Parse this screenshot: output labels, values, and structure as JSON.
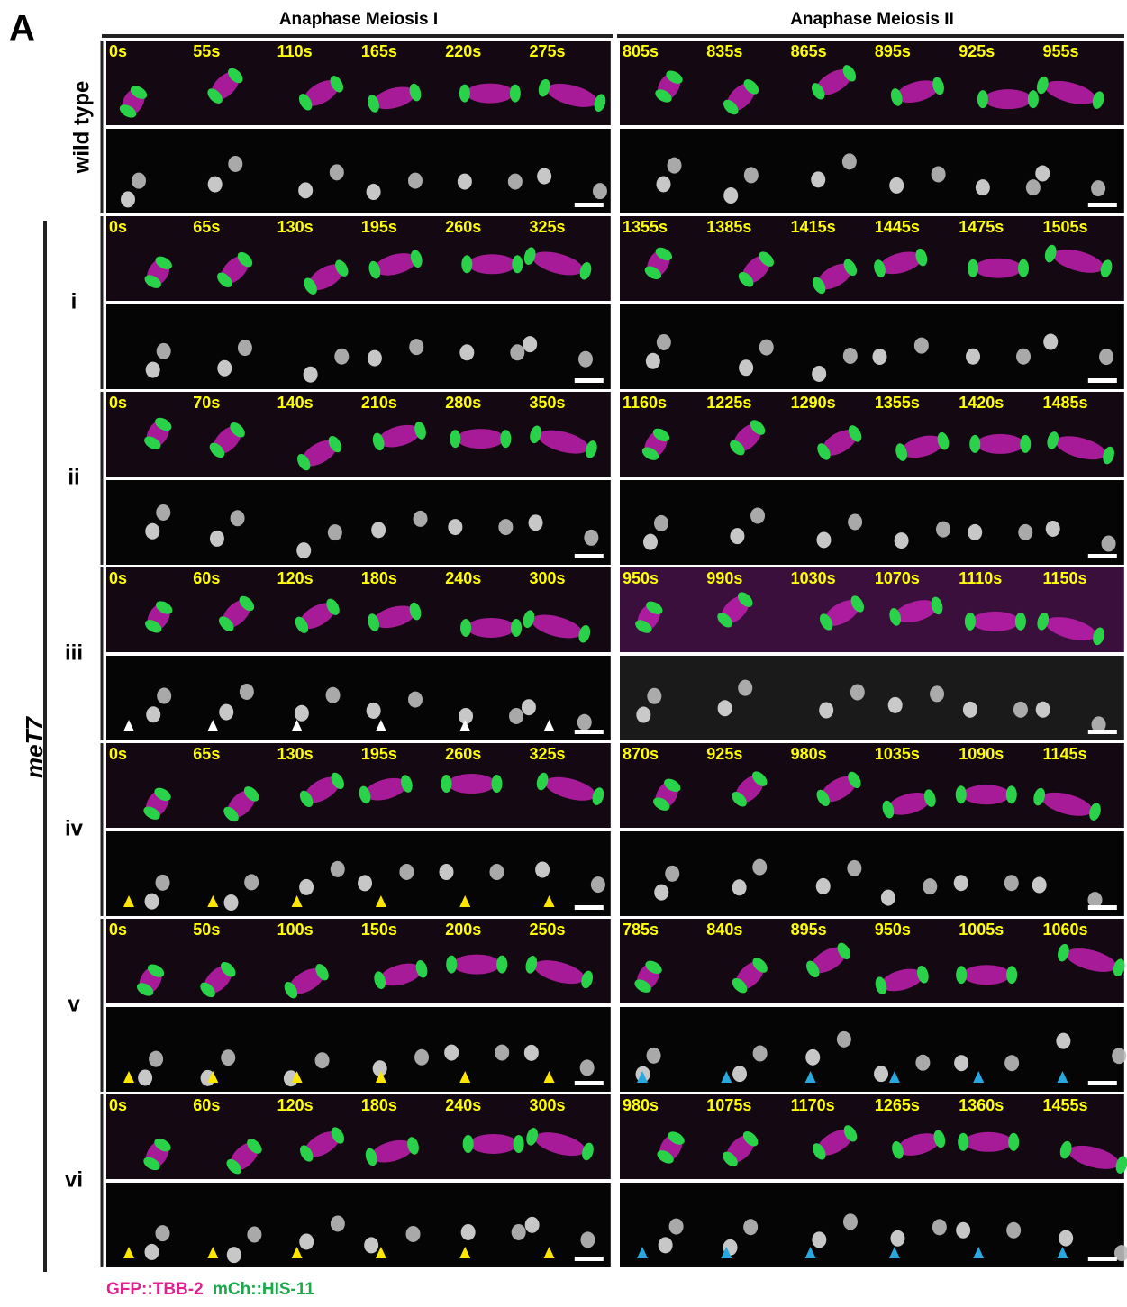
{
  "panel_label": "A",
  "columns": [
    "Anaphase Meiosis I",
    "Anaphase Meiosis II"
  ],
  "group_label": "meT7",
  "legend": [
    "GFP::TBB-2",
    "mCh::HIS-11"
  ],
  "rows": [
    {
      "label": "wild type",
      "meiosis_1": [
        "0s",
        "55s",
        "110s",
        "165s",
        "220s",
        "275s"
      ],
      "meiosis_2": [
        "805s",
        "835s",
        "865s",
        "895s",
        "925s",
        "955s"
      ]
    },
    {
      "label": "i",
      "meiosis_1": [
        "0s",
        "65s",
        "130s",
        "195s",
        "260s",
        "325s"
      ],
      "meiosis_2": [
        "1355s",
        "1385s",
        "1415s",
        "1445s",
        "1475s",
        "1505s"
      ]
    },
    {
      "label": "ii",
      "meiosis_1": [
        "0s",
        "70s",
        "140s",
        "210s",
        "280s",
        "350s"
      ],
      "meiosis_2": [
        "1160s",
        "1225s",
        "1290s",
        "1355s",
        "1420s",
        "1485s"
      ]
    },
    {
      "label": "iii",
      "meiosis_1": [
        "0s",
        "60s",
        "120s",
        "180s",
        "240s",
        "300s"
      ],
      "meiosis_2": [
        "950s",
        "990s",
        "1030s",
        "1070s",
        "1110s",
        "1150s"
      ]
    },
    {
      "label": "iv",
      "meiosis_1": [
        "0s",
        "65s",
        "130s",
        "195s",
        "260s",
        "325s"
      ],
      "meiosis_2": [
        "870s",
        "925s",
        "980s",
        "1035s",
        "1090s",
        "1145s"
      ]
    },
    {
      "label": "v",
      "meiosis_1": [
        "0s",
        "50s",
        "100s",
        "150s",
        "200s",
        "250s"
      ],
      "meiosis_2": [
        "785s",
        "840s",
        "895s",
        "950s",
        "1005s",
        "1060s"
      ]
    },
    {
      "label": "vi",
      "meiosis_1": [
        "0s",
        "60s",
        "120s",
        "180s",
        "240s",
        "300s"
      ],
      "meiosis_2": [
        "980s",
        "1075s",
        "1170s",
        "1265s",
        "1360s",
        "1455s"
      ]
    }
  ]
}
